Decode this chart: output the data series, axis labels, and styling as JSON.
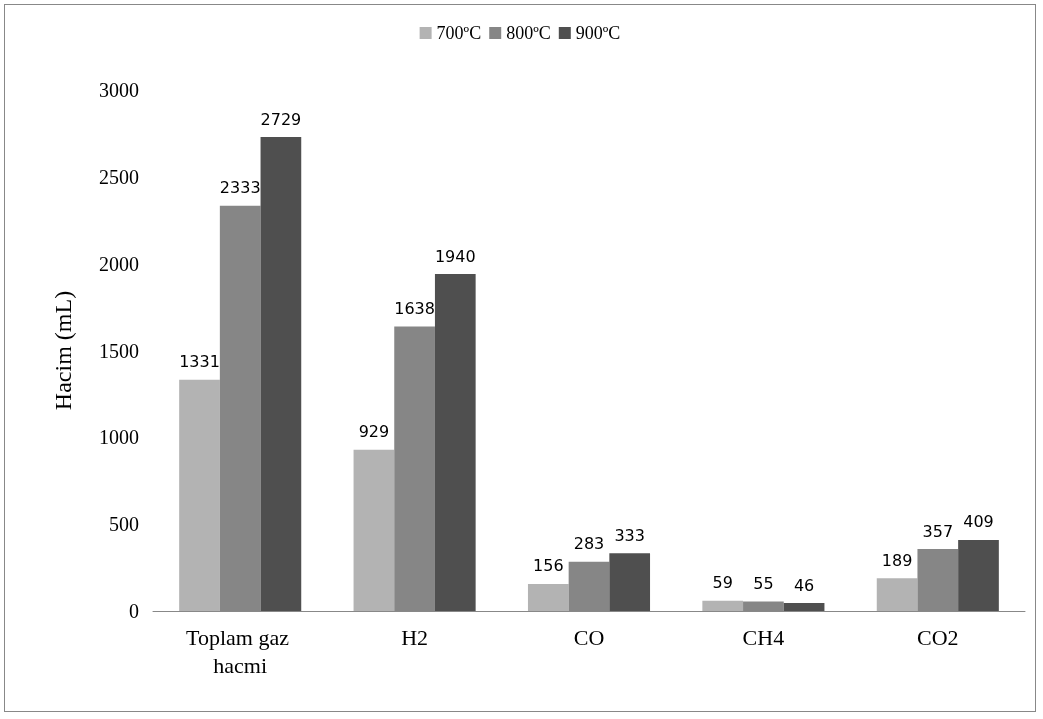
{
  "chart_data": {
    "type": "bar",
    "ylabel": "Hacim (mL)",
    "categories": [
      "Toplam gaz hacmi",
      "H2",
      "CO",
      "CH4",
      "CO2"
    ],
    "series": [
      {
        "name": "700ºC",
        "color": "#b3b3b3",
        "values": [
          1331,
          929,
          156,
          59,
          189
        ]
      },
      {
        "name": "800ºC",
        "color": "#868686",
        "values": [
          2333,
          1638,
          283,
          55,
          357
        ]
      },
      {
        "name": "900ºC",
        "color": "#4f4f4f",
        "values": [
          2729,
          1940,
          333,
          46,
          409
        ]
      }
    ],
    "ylim": [
      0,
      3000
    ],
    "yticks": [
      0,
      500,
      1000,
      1500,
      2000,
      2500,
      3000
    ],
    "grid": false,
    "legend": "top",
    "data_labels": true
  }
}
